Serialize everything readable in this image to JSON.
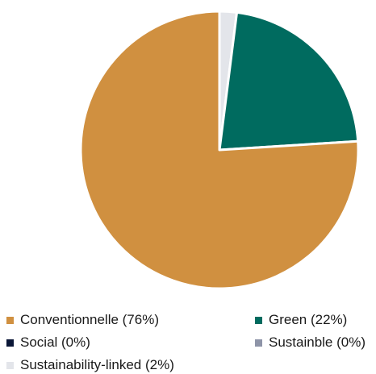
{
  "chart_data": {
    "type": "pie",
    "slices": [
      {
        "label": "Conventionnelle (76%)",
        "value": 76,
        "color": "#D09040"
      },
      {
        "label": "Green (22%)",
        "value": 22,
        "color": "#006B5F"
      },
      {
        "label": "Social (0%)",
        "value": 0,
        "color": "#0B1737"
      },
      {
        "label": "Sustainble (0%)",
        "value": 0,
        "color": "#8E94A8"
      },
      {
        "label": "Sustainability-linked (2%)",
        "value": 2,
        "color": "#E3E5EA"
      }
    ],
    "legend_position": "bottom"
  }
}
